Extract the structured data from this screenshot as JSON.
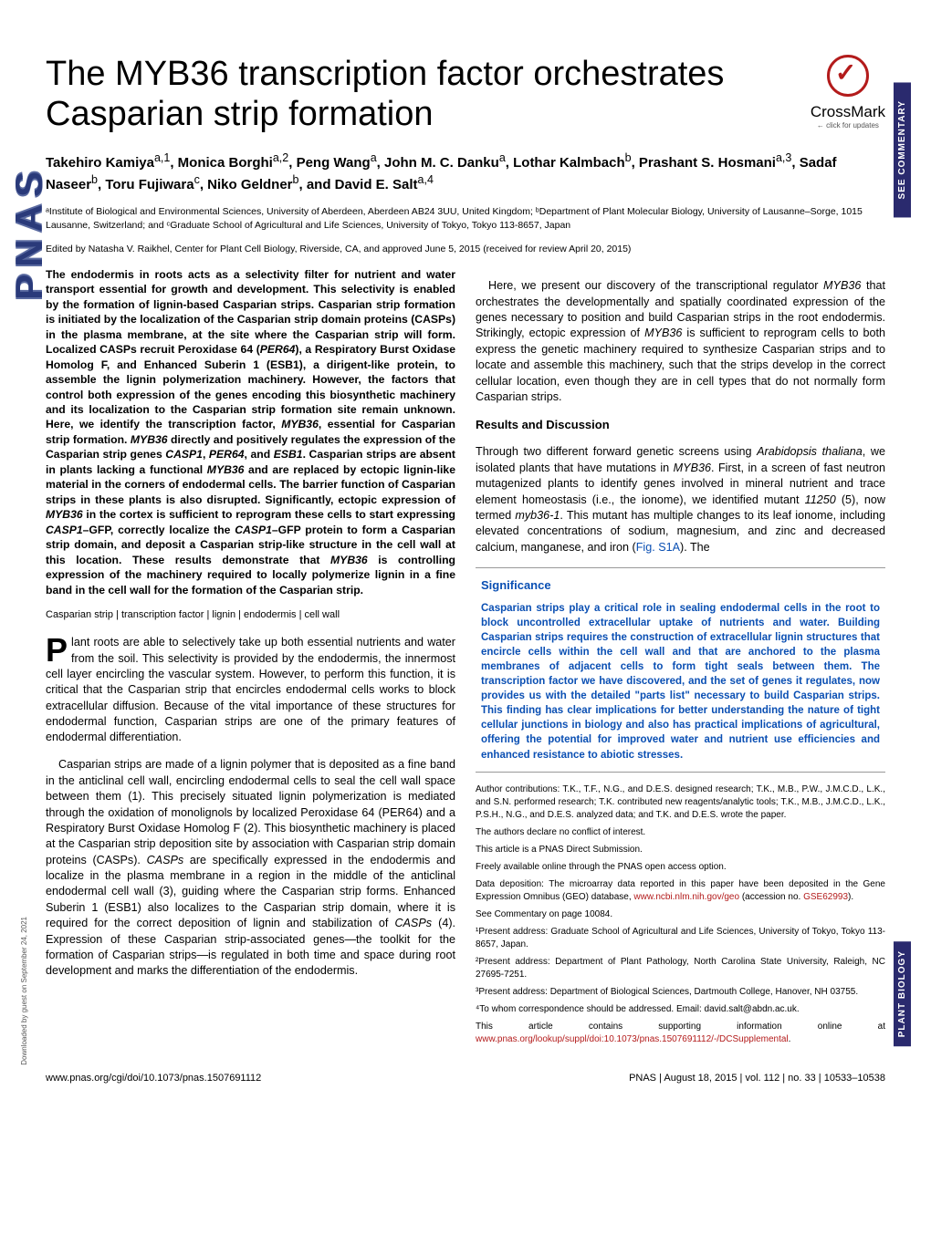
{
  "journal_side": "PNAS",
  "side_tab_top": "SEE COMMENTARY",
  "side_tab_bottom": "PLANT BIOLOGY",
  "crossmark": {
    "label": "CrossMark",
    "sub": "← click for updates"
  },
  "title": "The MYB36 transcription factor orchestrates Casparian strip formation",
  "authors_html": "Takehiro Kamiya<sup>a,1</sup>, Monica Borghi<sup>a,2</sup>, Peng Wang<sup>a</sup>, John M. C. Danku<sup>a</sup>, Lothar Kalmbach<sup>b</sup>, Prashant S. Hosmani<sup>a,3</sup>, Sadaf Naseer<sup>b</sup>, Toru Fujiwara<sup>c</sup>, Niko Geldner<sup>b</sup>, and David E. Salt<sup>a,4</sup>",
  "affiliations": "ᵃInstitute of Biological and Environmental Sciences, University of Aberdeen, Aberdeen AB24 3UU, United Kingdom; ᵇDepartment of Plant Molecular Biology, University of Lausanne–Sorge, 1015 Lausanne, Switzerland; and ᶜGraduate School of Agricultural and Life Sciences, University of Tokyo, Tokyo 113-8657, Japan",
  "edited": "Edited by Natasha V. Raikhel, Center for Plant Cell Biology, Riverside, CA, and approved June 5, 2015 (received for review April 20, 2015)",
  "abstract": "The endodermis in roots acts as a selectivity filter for nutrient and water transport essential for growth and development. This selectivity is enabled by the formation of lignin-based Casparian strips. Casparian strip formation is initiated by the localization of the Casparian strip domain proteins (CASPs) in the plasma membrane, at the site where the Casparian strip will form. Localized CASPs recruit Peroxidase 64 (PER64), a Respiratory Burst Oxidase Homolog F, and Enhanced Suberin 1 (ESB1), a dirigent-like protein, to assemble the lignin polymerization machinery. However, the factors that control both expression of the genes encoding this biosynthetic machinery and its localization to the Casparian strip formation site remain unknown. Here, we identify the transcription factor, MYB36, essential for Casparian strip formation. MYB36 directly and positively regulates the expression of the Casparian strip genes CASP1, PER64, and ESB1. Casparian strips are absent in plants lacking a functional MYB36 and are replaced by ectopic lignin-like material in the corners of endodermal cells. The barrier function of Casparian strips in these plants is also disrupted. Significantly, ectopic expression of MYB36 in the cortex is sufficient to reprogram these cells to start expressing CASP1–GFP, correctly localize the CASP1–GFP protein to form a Casparian strip domain, and deposit a Casparian strip-like structure in the cell wall at this location. These results demonstrate that MYB36 is controlling expression of the machinery required to locally polymerize lignin in a fine band in the cell wall for the formation of the Casparian strip.",
  "keywords": "Casparian strip | transcription factor | lignin | endodermis | cell wall",
  "body_p1": "Plant roots are able to selectively take up both essential nutrients and water from the soil. This selectivity is provided by the endodermis, the innermost cell layer encircling the vascular system. However, to perform this function, it is critical that the Casparian strip that encircles endodermal cells works to block extracellular diffusion. Because of the vital importance of these structures for endodermal function, Casparian strips are one of the primary features of endodermal differentiation.",
  "body_p2": "Casparian strips are made of a lignin polymer that is deposited as a fine band in the anticlinal cell wall, encircling endodermal cells to seal the cell wall space between them (1). This precisely situated lignin polymerization is mediated through the oxidation of monolignols by localized Peroxidase 64 (PER64) and a Respiratory Burst Oxidase Homolog F (2). This biosynthetic machinery is placed at the Casparian strip deposition site by association with Casparian strip domain proteins (CASPs). CASPs are specifically expressed in the endodermis and localize in the plasma membrane in a region in the middle of the anticlinal endodermal cell wall (3), guiding where the Casparian strip forms. Enhanced Suberin 1 (ESB1) also localizes to the Casparian strip domain, where it is required for the correct deposition of lignin and stabilization of CASPs (4). Expression of these Casparian strip-associated genes—the toolkit for the formation of Casparian strips—is regulated in both time and space during root development and marks the differentiation of the endodermis.",
  "right_p1": "Here, we present our discovery of the transcriptional regulator MYB36 that orchestrates the developmentally and spatially coordinated expression of the genes necessary to position and build Casparian strips in the root endodermis. Strikingly, ectopic expression of MYB36 is sufficient to reprogram cells to both express the genetic machinery required to synthesize Casparian strips and to locate and assemble this machinery, such that the strips develop in the correct cellular location, even though they are in cell types that do not normally form Casparian strips.",
  "results_head": "Results and Discussion",
  "right_p2a": "Through two different forward genetic screens using ",
  "right_p2b": ", we isolated plants that have mutations in ",
  "right_p2c": ". First, in a screen of fast neutron mutagenized plants to identify genes involved in mineral nutrient and trace element homeostasis (i.e., the ionome), we identified mutant ",
  "right_p2d": " (5), now termed ",
  "right_p2e": ". This mutant has multiple changes to its leaf ionome, including elevated concentrations of sodium, magnesium, and zinc and decreased calcium, manganese, and iron (",
  "right_p2f": "). The",
  "fig_link": "Fig. S1A",
  "arabidopsis": "Arabidopsis thaliana",
  "myb36_gene": "MYB36",
  "mutant_id": "11250",
  "mutant_name": "myb36-1",
  "sig_title": "Significance",
  "sig_body": "Casparian strips play a critical role in sealing endodermal cells in the root to block uncontrolled extracellular uptake of nutrients and water. Building Casparian strips requires the construction of extracellular lignin structures that encircle cells within the cell wall and that are anchored to the plasma membranes of adjacent cells to form tight seals between them. The transcription factor we have discovered, and the set of genes it regulates, now provides us with the detailed \"parts list\" necessary to build Casparian strips. This finding has clear implications for better understanding the nature of tight cellular junctions in biology and also has practical implications of agricultural, offering the potential for improved water and nutrient use efficiencies and enhanced resistance to abiotic stresses.",
  "contributions": "Author contributions: T.K., T.F., N.G., and D.E.S. designed research; T.K., M.B., P.W., J.M.C.D., L.K., and S.N. performed research; T.K. contributed new reagents/analytic tools; T.K., M.B., J.M.C.D., L.K., P.S.H., N.G., and D.E.S. analyzed data; and T.K. and D.E.S. wrote the paper.",
  "conflict": "The authors declare no conflict of interest.",
  "direct": "This article is a PNAS Direct Submission.",
  "open": "Freely available online through the PNAS open access option.",
  "deposition_a": "Data deposition: The microarray data reported in this paper have been deposited in the Gene Expression Omnibus (GEO) database, ",
  "deposition_url": "www.ncbi.nlm.nih.gov/geo",
  "deposition_b": " (accession no. ",
  "accession": "GSE62993",
  "deposition_c": ").",
  "commentary": "See Commentary on page 10084.",
  "addr1": "¹Present address: Graduate School of Agricultural and Life Sciences, University of Tokyo, Tokyo 113-8657, Japan.",
  "addr2": "²Present address: Department of Plant Pathology, North Carolina State University, Raleigh, NC 27695-7251.",
  "addr3": "³Present address: Department of Biological Sciences, Dartmouth College, Hanover, NH 03755.",
  "corr": "⁴To whom correspondence should be addressed. Email: david.salt@abdn.ac.uk.",
  "supp_a": "This article contains supporting information online at ",
  "supp_url": "www.pnas.org/lookup/suppl/doi:10.1073/pnas.1507691112/-/DCSupplemental",
  "supp_b": ".",
  "footer_left": "www.pnas.org/cgi/doi/10.1073/pnas.1507691112",
  "footer_right": "PNAS  |  August 18, 2015  |  vol. 112  |  no. 33  |  10533–10538",
  "download_note": "Downloaded by guest on September 24, 2021"
}
